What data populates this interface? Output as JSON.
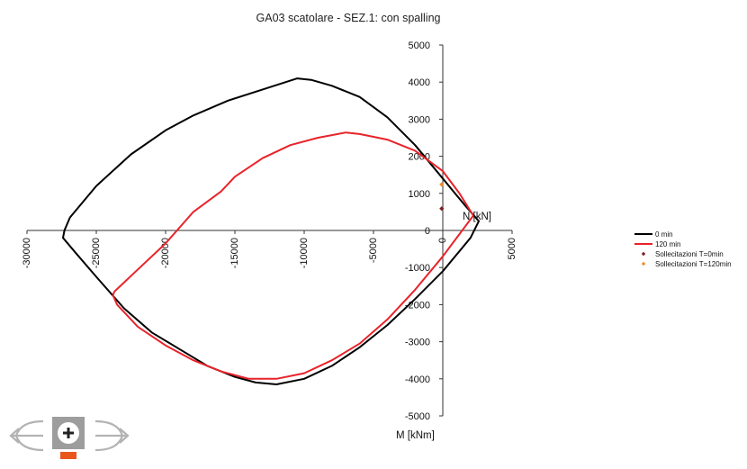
{
  "chart_data": {
    "type": "line",
    "title": "GA03 scatolare - SEZ.1: con spalling",
    "xlabel": "N [kN]",
    "ylabel": "M [kNm]",
    "xlim": [
      -30000,
      5000
    ],
    "ylim": [
      -5000,
      5000
    ],
    "x_ticks": [
      -30000,
      -25000,
      -20000,
      -15000,
      -10000,
      -5000,
      0,
      5000
    ],
    "y_ticks": [
      -5000,
      -4000,
      -3000,
      -2000,
      -1000,
      0,
      1000,
      2000,
      3000,
      4000,
      5000
    ],
    "grid": false,
    "legend_position": "right",
    "series": [
      {
        "name": "0 min",
        "kind": "line",
        "color": "#000000",
        "points": [
          [
            -26900,
            350
          ],
          [
            -25000,
            1200
          ],
          [
            -22500,
            2050
          ],
          [
            -20000,
            2700
          ],
          [
            -18000,
            3100
          ],
          [
            -15500,
            3500
          ],
          [
            -13000,
            3800
          ],
          [
            -10500,
            4100
          ],
          [
            -9500,
            4060
          ],
          [
            -8000,
            3900
          ],
          [
            -6000,
            3600
          ],
          [
            -4000,
            3050
          ],
          [
            -2000,
            2300
          ],
          [
            0,
            1400
          ],
          [
            1500,
            720
          ],
          [
            2600,
            250
          ],
          [
            2000,
            -200
          ],
          [
            0,
            -1100
          ],
          [
            -2000,
            -1850
          ],
          [
            -4000,
            -2550
          ],
          [
            -6000,
            -3150
          ],
          [
            -8000,
            -3650
          ],
          [
            -10000,
            -4000
          ],
          [
            -12000,
            -4150
          ],
          [
            -13500,
            -4100
          ],
          [
            -15000,
            -3950
          ],
          [
            -17000,
            -3650
          ],
          [
            -19000,
            -3200
          ],
          [
            -21000,
            -2750
          ],
          [
            -23000,
            -2100
          ],
          [
            -25000,
            -1250
          ],
          [
            -26500,
            -600
          ],
          [
            -27400,
            -200
          ],
          [
            -27300,
            0
          ],
          [
            -26900,
            350
          ]
        ]
      },
      {
        "name": "120 min",
        "kind": "line",
        "color": "#e8232a",
        "points": [
          [
            -23700,
            -1650
          ],
          [
            -22000,
            -1050
          ],
          [
            -20000,
            -350
          ],
          [
            -18000,
            500
          ],
          [
            -16000,
            1050
          ],
          [
            -15000,
            1450
          ],
          [
            -13000,
            1950
          ],
          [
            -11000,
            2300
          ],
          [
            -9000,
            2500
          ],
          [
            -7000,
            2640
          ],
          [
            -6000,
            2600
          ],
          [
            -4000,
            2450
          ],
          [
            -2000,
            2150
          ],
          [
            0,
            1600
          ],
          [
            1200,
            1000
          ],
          [
            2200,
            400
          ],
          [
            1200,
            -100
          ],
          [
            0,
            -700
          ],
          [
            -2000,
            -1600
          ],
          [
            -4000,
            -2400
          ],
          [
            -6000,
            -3050
          ],
          [
            -8000,
            -3500
          ],
          [
            -10000,
            -3850
          ],
          [
            -12000,
            -4000
          ],
          [
            -14000,
            -4000
          ],
          [
            -16000,
            -3800
          ],
          [
            -18000,
            -3500
          ],
          [
            -20000,
            -3100
          ],
          [
            -22000,
            -2600
          ],
          [
            -23500,
            -2000
          ],
          [
            -23800,
            -1750
          ],
          [
            -23700,
            -1650
          ]
        ]
      },
      {
        "name": "Sollecitazioni T=0min",
        "kind": "marker",
        "color": "#7a1f1f",
        "points": [
          [
            -80,
            590
          ]
        ]
      },
      {
        "name": "Sollecitazioni T=120min",
        "kind": "marker",
        "color": "#f28c2a",
        "points": [
          [
            -80,
            1240
          ]
        ]
      }
    ]
  },
  "toolbar": {
    "back_icon": "arrow-left-icon",
    "add_icon": "plus-circle-icon",
    "forward_icon": "arrow-right-icon",
    "accent_color": "#e8581d"
  }
}
